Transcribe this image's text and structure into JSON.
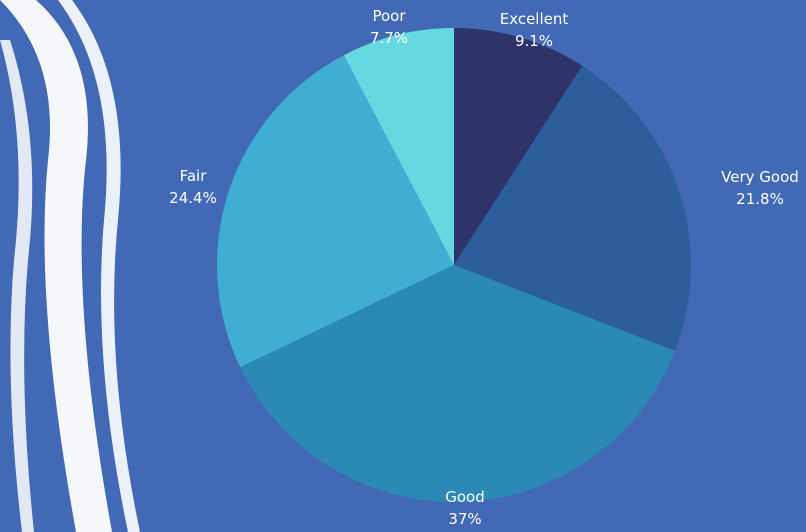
{
  "chart_data": {
    "type": "pie",
    "title": "",
    "categories": [
      "Excellent",
      "Very Good",
      "Good",
      "Fair",
      "Poor"
    ],
    "values": [
      9.1,
      21.8,
      37,
      24.4,
      7.7
    ],
    "value_labels": [
      "9.1%",
      "21.8%",
      "37%",
      "24.4%",
      "7.7%"
    ],
    "colors": [
      "#2e3369",
      "#2b5e9b",
      "#2b89b5",
      "#3faed2",
      "#64d9e0"
    ],
    "start": "top",
    "direction": "clockwise",
    "legend": "none"
  }
}
